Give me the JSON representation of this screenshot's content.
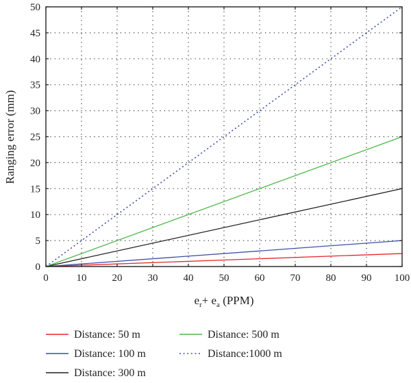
{
  "chart_data": {
    "type": "line",
    "title": "",
    "xlabel": {
      "base1": "e",
      "sub1": "r",
      "plus": "+ ",
      "base2": "e",
      "sub2": "a",
      "unit": " (PPM)"
    },
    "ylabel": "Ranging error (mm)",
    "xlim": [
      0,
      100
    ],
    "ylim": [
      0,
      50
    ],
    "xticks": [
      0,
      10,
      20,
      30,
      40,
      50,
      60,
      70,
      80,
      90,
      100
    ],
    "yticks": [
      0,
      5,
      10,
      15,
      20,
      25,
      30,
      35,
      40,
      45,
      50
    ],
    "grid": true,
    "legend_position": "bottom",
    "x": [
      0,
      100
    ],
    "series": [
      {
        "name": "Distance: 50 m",
        "values": [
          0,
          2.5
        ],
        "color": "#e8262d",
        "style": "solid"
      },
      {
        "name": "Distance: 100 m",
        "values": [
          0,
          5
        ],
        "color": "#3a4fa6",
        "style": "solid"
      },
      {
        "name": "Distance: 300 m",
        "values": [
          0,
          15
        ],
        "color": "#231f20",
        "style": "solid"
      },
      {
        "name": "Distance: 500 m",
        "values": [
          0,
          25
        ],
        "color": "#4cb848",
        "style": "solid"
      },
      {
        "name": "Distance:1000 m",
        "values": [
          0,
          50
        ],
        "color": "#3a4fa6",
        "style": "dotted"
      }
    ]
  }
}
